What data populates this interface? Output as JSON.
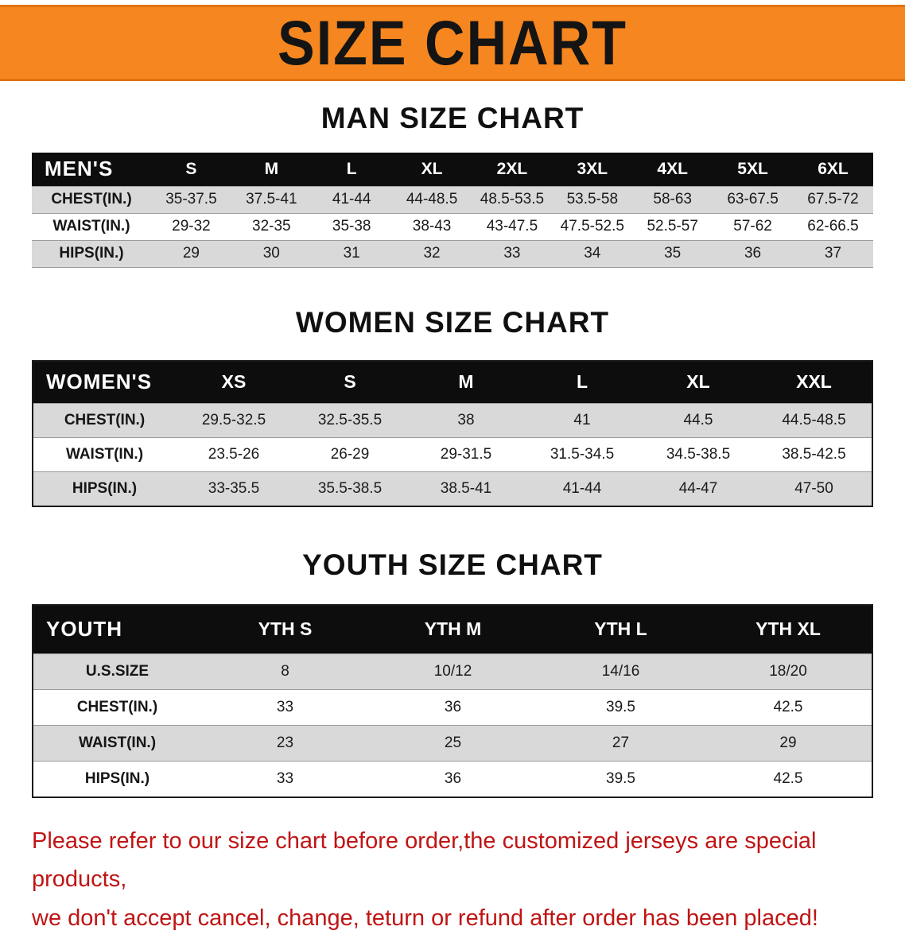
{
  "banner": {
    "title": "SIZE CHART",
    "bg_color": "#f6861f"
  },
  "men": {
    "heading": "MAN SIZE CHART",
    "table": {
      "header": [
        "MEN'S",
        "S",
        "M",
        "L",
        "XL",
        "2XL",
        "3XL",
        "4XL",
        "5XL",
        "6XL"
      ],
      "rows": [
        [
          "CHEST(IN.)",
          "35-37.5",
          "37.5-41",
          "41-44",
          "44-48.5",
          "48.5-53.5",
          "53.5-58",
          "58-63",
          "63-67.5",
          "67.5-72"
        ],
        [
          "WAIST(IN.)",
          "29-32",
          "32-35",
          "35-38",
          "38-43",
          "43-47.5",
          "47.5-52.5",
          "52.5-57",
          "57-62",
          "62-66.5"
        ],
        [
          "HIPS(IN.)",
          "29",
          "30",
          "31",
          "32",
          "33",
          "34",
          "35",
          "36",
          "37"
        ]
      ]
    }
  },
  "women": {
    "heading": "WOMEN SIZE CHART",
    "table": {
      "header": [
        "WOMEN'S",
        "XS",
        "S",
        "M",
        "L",
        "XL",
        "XXL"
      ],
      "rows": [
        [
          "CHEST(IN.)",
          "29.5-32.5",
          "32.5-35.5",
          "38",
          "41",
          "44.5",
          "44.5-48.5"
        ],
        [
          "WAIST(IN.)",
          "23.5-26",
          "26-29",
          "29-31.5",
          "31.5-34.5",
          "34.5-38.5",
          "38.5-42.5"
        ],
        [
          "HIPS(IN.)",
          "33-35.5",
          "35.5-38.5",
          "38.5-41",
          "41-44",
          "44-47",
          "47-50"
        ]
      ]
    }
  },
  "youth": {
    "heading": "YOUTH SIZE CHART",
    "table": {
      "header": [
        "YOUTH",
        "YTH S",
        "YTH M",
        "YTH L",
        "YTH XL"
      ],
      "rows": [
        [
          "U.S.SIZE",
          "8",
          "10/12",
          "14/16",
          "18/20"
        ],
        [
          "CHEST(IN.)",
          "33",
          "36",
          "39.5",
          "42.5"
        ],
        [
          "WAIST(IN.)",
          "23",
          "25",
          "27",
          "29"
        ],
        [
          "HIPS(IN.)",
          "33",
          "36",
          "39.5",
          "42.5"
        ]
      ]
    }
  },
  "disclaimer": {
    "line1": "Please refer to our size chart before order,the customized jerseys are special products,",
    "line2": "we don't accept cancel, change, teturn or refund after order has been placed!",
    "color": "#c01414"
  }
}
